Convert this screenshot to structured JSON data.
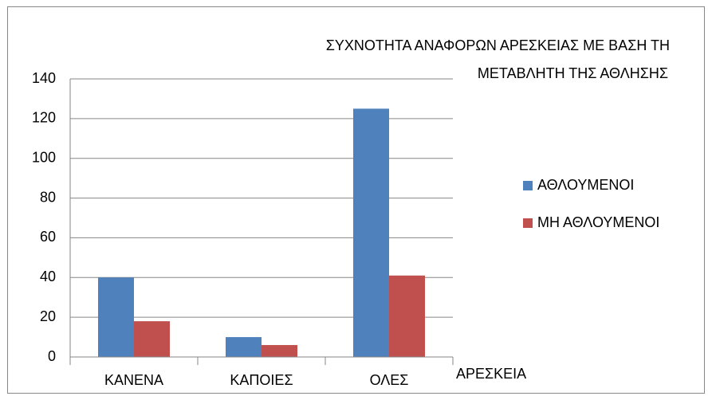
{
  "chart_data": {
    "type": "bar",
    "title": [
      "ΣΥΧΝΟΤΗΤΑ ΑΝΑΦΟΡΩΝ  ΑΡΕΣΚΕΙΑΣ ΜΕ ΒΑΣΗ ΤΗ",
      "ΜΕΤΑΒΛΗΤΗ ΤΗΣ ΑΘΛΗΣΗΣ"
    ],
    "x_label": "ΑΡΕΣΚΕΙΑ",
    "categories": [
      "ΚΑΝΕΝΑ",
      "ΚΑΠΟΙΕΣ",
      "ΟΛΕΣ"
    ],
    "series": [
      {
        "name": "ΑΘΛΟΥΜΕΝΟΙ",
        "color": "#4f81bd",
        "values": [
          40,
          10,
          125
        ]
      },
      {
        "name": "ΜΗ ΑΘΛΟΥΜΕΝΟΙ",
        "color": "#c0504d",
        "values": [
          18,
          6,
          41
        ]
      }
    ],
    "ylim": [
      0,
      140
    ],
    "yticks": [
      0,
      20,
      40,
      60,
      80,
      100,
      120,
      140
    ],
    "grid": true,
    "legend": "right"
  }
}
